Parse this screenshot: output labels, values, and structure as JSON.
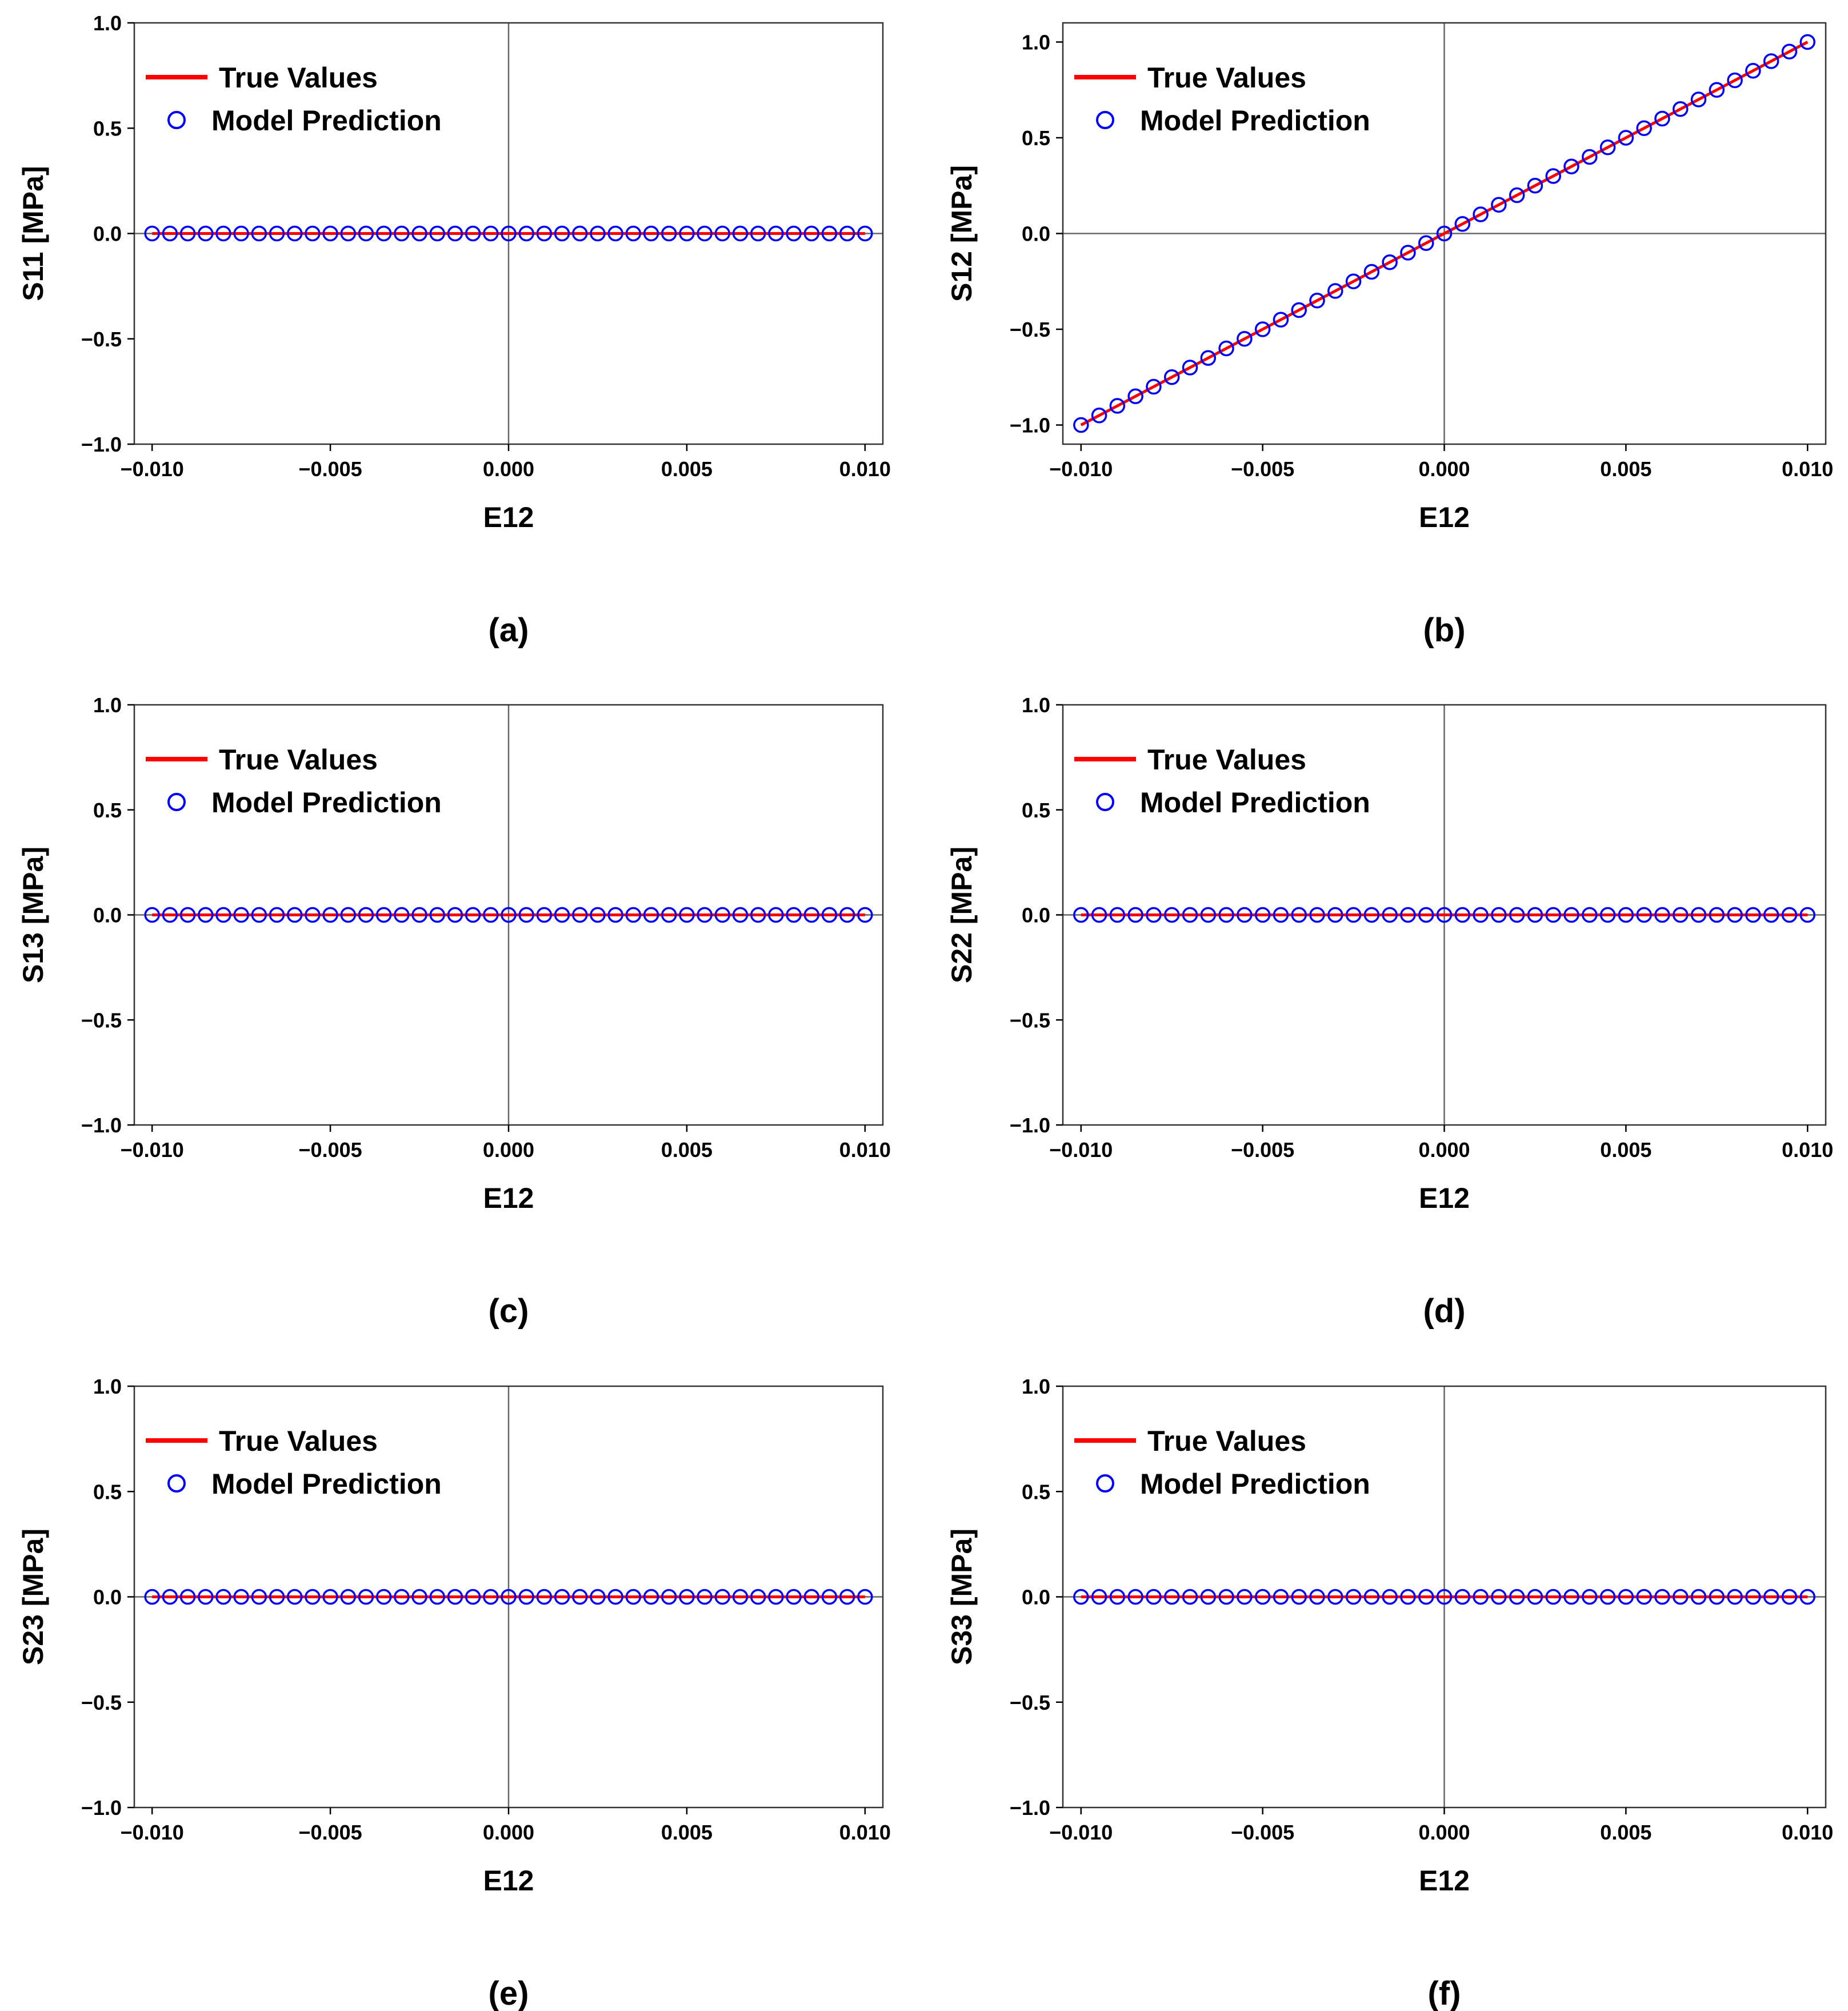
{
  "colors": {
    "true_values": "#ff0000",
    "model_prediction": "#0000ff",
    "axes": "#333333",
    "zero_lines": "#666666"
  },
  "chart_data": [
    {
      "type": "line",
      "panel": "(a)",
      "xlabel": "E12",
      "ylabel": "S11 [MPa]",
      "xlim": [
        -0.0105,
        0.0105
      ],
      "ylim": [
        -1.0,
        1.0
      ],
      "xticks": [
        -0.01,
        -0.005,
        0.0,
        0.005,
        0.01
      ],
      "xtick_labels": [
        "−0.010",
        "−0.005",
        "0.000",
        "0.005",
        "0.010"
      ],
      "yticks": [
        1.0,
        0.5,
        0.0,
        -0.5,
        -1.0
      ],
      "ytick_labels": [
        "1.0",
        "0.5",
        "0.0",
        "−0.5",
        "−1.0"
      ],
      "legend": {
        "position": "top-left",
        "entries": [
          "True Values",
          "Model Prediction"
        ]
      },
      "series": [
        {
          "name": "True Values",
          "style": "line",
          "x": [
            -0.01,
            0.01
          ],
          "y": [
            0.0,
            0.0
          ]
        },
        {
          "name": "Model Prediction",
          "style": "markers",
          "x_start": -0.01,
          "x_end": 0.01,
          "count": 41,
          "y_start": 0.0,
          "y_end": 0.0
        }
      ]
    },
    {
      "type": "line",
      "panel": "(b)",
      "xlabel": "E12",
      "ylabel": "S12 [MPa]",
      "xlim": [
        -0.0105,
        0.0105
      ],
      "ylim": [
        -1.1,
        1.1
      ],
      "xticks": [
        -0.01,
        -0.005,
        0.0,
        0.005,
        0.01
      ],
      "xtick_labels": [
        "−0.010",
        "−0.005",
        "0.000",
        "0.005",
        "0.010"
      ],
      "yticks": [
        1.0,
        0.5,
        0.0,
        -0.5,
        -1.0
      ],
      "ytick_labels": [
        "1.0",
        "0.5",
        "0.0",
        "−0.5",
        "−1.0"
      ],
      "legend": {
        "position": "top-left",
        "entries": [
          "True Values",
          "Model Prediction"
        ]
      },
      "series": [
        {
          "name": "True Values",
          "style": "line",
          "x": [
            -0.01,
            0.01
          ],
          "y": [
            -1.0,
            1.0
          ]
        },
        {
          "name": "Model Prediction",
          "style": "markers",
          "x_start": -0.01,
          "x_end": 0.01,
          "count": 41,
          "y_start": -1.0,
          "y_end": 1.0
        }
      ]
    },
    {
      "type": "line",
      "panel": "(c)",
      "xlabel": "E12",
      "ylabel": "S13 [MPa]",
      "xlim": [
        -0.0105,
        0.0105
      ],
      "ylim": [
        -1.0,
        1.0
      ],
      "xticks": [
        -0.01,
        -0.005,
        0.0,
        0.005,
        0.01
      ],
      "xtick_labels": [
        "−0.010",
        "−0.005",
        "0.000",
        "0.005",
        "0.010"
      ],
      "yticks": [
        1.0,
        0.5,
        0.0,
        -0.5,
        -1.0
      ],
      "ytick_labels": [
        "1.0",
        "0.5",
        "0.0",
        "−0.5",
        "−1.0"
      ],
      "legend": {
        "position": "top-left",
        "entries": [
          "True Values",
          "Model Prediction"
        ]
      },
      "series": [
        {
          "name": "True Values",
          "style": "line",
          "x": [
            -0.01,
            0.01
          ],
          "y": [
            0.0,
            0.0
          ]
        },
        {
          "name": "Model Prediction",
          "style": "markers",
          "x_start": -0.01,
          "x_end": 0.01,
          "count": 41,
          "y_start": 0.0,
          "y_end": 0.0
        }
      ]
    },
    {
      "type": "line",
      "panel": "(d)",
      "xlabel": "E12",
      "ylabel": "S22 [MPa]",
      "xlim": [
        -0.0105,
        0.0105
      ],
      "ylim": [
        -1.0,
        1.0
      ],
      "xticks": [
        -0.01,
        -0.005,
        0.0,
        0.005,
        0.01
      ],
      "xtick_labels": [
        "−0.010",
        "−0.005",
        "0.000",
        "0.005",
        "0.010"
      ],
      "yticks": [
        1.0,
        0.5,
        0.0,
        -0.5,
        -1.0
      ],
      "ytick_labels": [
        "1.0",
        "0.5",
        "0.0",
        "−0.5",
        "−1.0"
      ],
      "legend": {
        "position": "top-left",
        "entries": [
          "True Values",
          "Model Prediction"
        ]
      },
      "series": [
        {
          "name": "True Values",
          "style": "line",
          "x": [
            -0.01,
            0.01
          ],
          "y": [
            0.0,
            0.0
          ]
        },
        {
          "name": "Model Prediction",
          "style": "markers",
          "x_start": -0.01,
          "x_end": 0.01,
          "count": 41,
          "y_start": 0.0,
          "y_end": 0.0
        }
      ]
    },
    {
      "type": "line",
      "panel": "(e)",
      "xlabel": "E12",
      "ylabel": "S23 [MPa]",
      "xlim": [
        -0.0105,
        0.0105
      ],
      "ylim": [
        -1.0,
        1.0
      ],
      "xticks": [
        -0.01,
        -0.005,
        0.0,
        0.005,
        0.01
      ],
      "xtick_labels": [
        "−0.010",
        "−0.005",
        "0.000",
        "0.005",
        "0.010"
      ],
      "yticks": [
        1.0,
        0.5,
        0.0,
        -0.5,
        -1.0
      ],
      "ytick_labels": [
        "1.0",
        "0.5",
        "0.0",
        "−0.5",
        "−1.0"
      ],
      "legend": {
        "position": "top-left",
        "entries": [
          "True Values",
          "Model Prediction"
        ]
      },
      "series": [
        {
          "name": "True Values",
          "style": "line",
          "x": [
            -0.01,
            0.01
          ],
          "y": [
            0.0,
            0.0
          ]
        },
        {
          "name": "Model Prediction",
          "style": "markers",
          "x_start": -0.01,
          "x_end": 0.01,
          "count": 41,
          "y_start": 0.0,
          "y_end": 0.0
        }
      ]
    },
    {
      "type": "line",
      "panel": "(f)",
      "xlabel": "E12",
      "ylabel": "S33 [MPa]",
      "xlim": [
        -0.0105,
        0.0105
      ],
      "ylim": [
        -1.0,
        1.0
      ],
      "xticks": [
        -0.01,
        -0.005,
        0.0,
        0.005,
        0.01
      ],
      "xtick_labels": [
        "−0.010",
        "−0.005",
        "0.000",
        "0.005",
        "0.010"
      ],
      "yticks": [
        1.0,
        0.5,
        0.0,
        -0.5,
        -1.0
      ],
      "ytick_labels": [
        "1.0",
        "0.5",
        "0.0",
        "−0.5",
        "−1.0"
      ],
      "legend": {
        "position": "top-left",
        "entries": [
          "True Values",
          "Model Prediction"
        ]
      },
      "series": [
        {
          "name": "True Values",
          "style": "line",
          "x": [
            -0.01,
            0.01
          ],
          "y": [
            0.0,
            0.0
          ]
        },
        {
          "name": "Model Prediction",
          "style": "markers",
          "x_start": -0.01,
          "x_end": 0.01,
          "count": 41,
          "y_start": 0.0,
          "y_end": 0.0
        }
      ]
    }
  ]
}
